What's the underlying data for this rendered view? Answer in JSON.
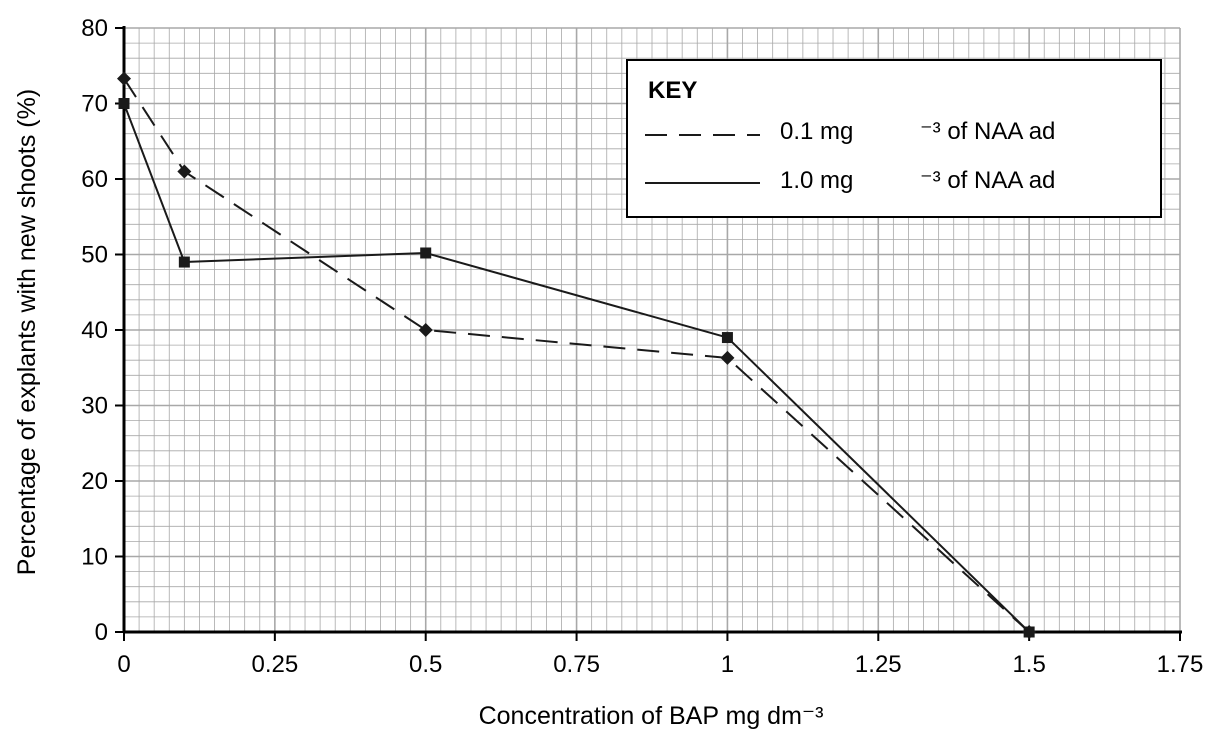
{
  "chart_data": {
    "type": "line",
    "xlabel": "Concentration of BAP mg dm⁻³",
    "ylabel": "Percentage of explants with new shoots (%)",
    "xlim": [
      0,
      1.75
    ],
    "ylim": [
      0,
      80
    ],
    "x_ticks": [
      0,
      0.25,
      0.5,
      0.75,
      1,
      1.25,
      1.5,
      1.75
    ],
    "x_tick_labels": [
      "0",
      "0.25",
      "0.5",
      "0.75",
      "1",
      "1.25",
      "1.5",
      "1.75"
    ],
    "y_ticks": [
      0,
      10,
      20,
      30,
      40,
      50,
      60,
      70,
      80
    ],
    "y_tick_labels": [
      "0",
      "10",
      "20",
      "30",
      "40",
      "50",
      "60",
      "70",
      "80"
    ],
    "grid": "minor and major gridlines on",
    "legend": {
      "title": "KEY",
      "placement": "top-right",
      "entries": [
        {
          "series_index": 0,
          "prefix": "0.1 mg",
          "suffix": "⁻³ of NAA ad"
        },
        {
          "series_index": 1,
          "prefix": "1.0 mg",
          "suffix": "⁻³ of NAA ad"
        }
      ]
    },
    "series": [
      {
        "line_style": "dashed",
        "marker": "diamond",
        "x": [
          0,
          0.1,
          0.5,
          1,
          1.5
        ],
        "y": [
          73.3,
          61,
          40,
          36.3,
          0
        ]
      },
      {
        "line_style": "solid",
        "marker": "square",
        "x": [
          0,
          0.1,
          0.5,
          1,
          1.5
        ],
        "y": [
          70,
          49,
          50.2,
          39,
          0
        ]
      }
    ],
    "colors": {
      "line": "#1a1a1a",
      "grid": "#a8a8a8",
      "axis": "#000000",
      "background": "#ffffff"
    }
  }
}
